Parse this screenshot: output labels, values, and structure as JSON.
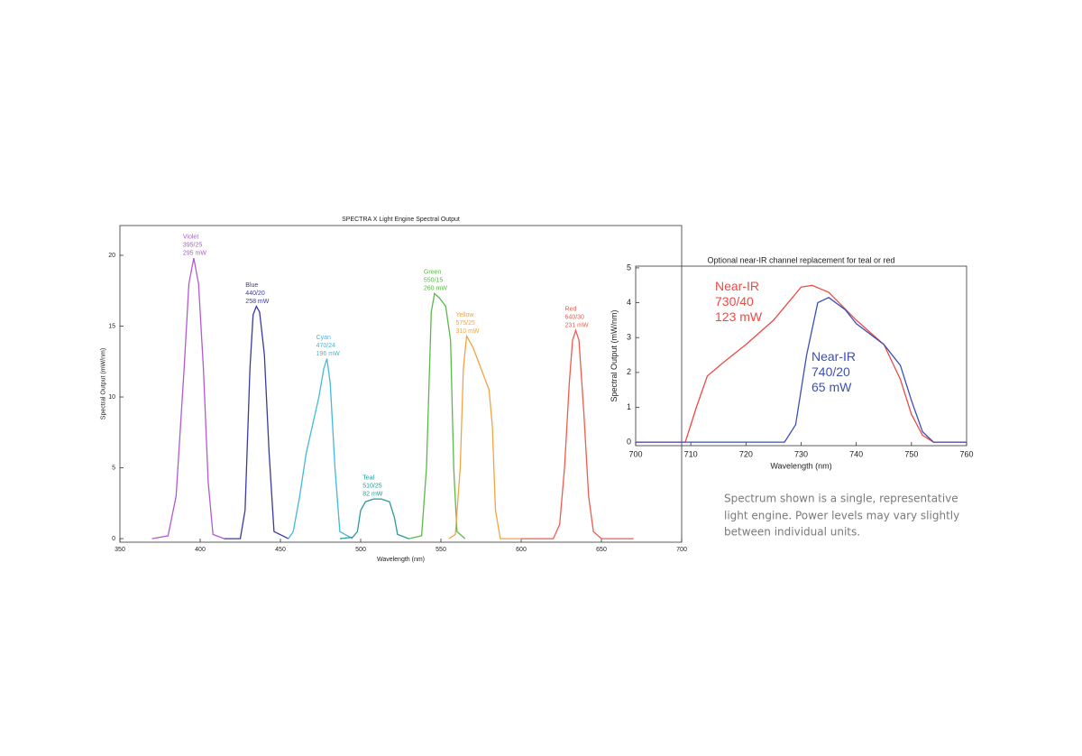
{
  "chart_data": [
    {
      "type": "line",
      "title": "SPECTRA X Light Engine Spectral Output",
      "xlabel": "Wavelength (nm)",
      "ylabel": "Spectral Output (mW/nm)",
      "xlim": [
        350,
        700
      ],
      "xticks": [
        350,
        400,
        450,
        500,
        550,
        600,
        650,
        700
      ],
      "ylim": [
        -0.25,
        22.1
      ],
      "yticks": [
        0,
        5,
        10,
        15,
        20
      ],
      "grid": false,
      "series": [
        {
          "name": "Violet",
          "filter": "395/25",
          "power": "295 mW",
          "color": "#b25ad2",
          "x": [
            370,
            380,
            385,
            390,
            393,
            396,
            399,
            402,
            405,
            408,
            415
          ],
          "values": [
            0,
            0.2,
            3,
            12,
            18,
            19.8,
            18,
            12,
            4,
            0.3,
            0
          ]
        },
        {
          "name": "Blue",
          "filter": "440/20",
          "power": "258 mW",
          "color": "#3a3a9e",
          "x": [
            415,
            425,
            428,
            431,
            433,
            435,
            437,
            440,
            443,
            446,
            455
          ],
          "values": [
            0,
            0,
            2,
            12,
            15.8,
            16.4,
            16,
            13,
            6,
            0.5,
            0
          ]
        },
        {
          "name": "Cyan",
          "filter": "470/24",
          "power": "196 mW",
          "color": "#45b9d9",
          "x": [
            455,
            458,
            462,
            466,
            470,
            474,
            477,
            479,
            481,
            484,
            487,
            495
          ],
          "values": [
            0,
            0.5,
            3,
            6,
            8,
            10,
            12,
            12.7,
            11,
            5,
            0.5,
            0
          ]
        },
        {
          "name": "Teal",
          "filter": "510/25",
          "power": "82 mW",
          "color": "#2a9a9c",
          "x": [
            487,
            495,
            498,
            500,
            503,
            508,
            513,
            518,
            521,
            523,
            530
          ],
          "values": [
            0,
            0.1,
            0.5,
            2,
            2.6,
            2.8,
            2.8,
            2.6,
            1.5,
            0.3,
            0
          ]
        },
        {
          "name": "Green",
          "filter": "550/15",
          "power": "260 mW",
          "color": "#5cb84c",
          "x": [
            530,
            538,
            541,
            544,
            546,
            549,
            553,
            556,
            558,
            560,
            565
          ],
          "values": [
            0,
            0.2,
            5,
            16,
            17.3,
            17,
            16.4,
            14,
            5,
            0.5,
            0
          ]
        },
        {
          "name": "Yellow",
          "filter": "575/25",
          "power": "310 mW",
          "color": "#f2a443",
          "x": [
            555,
            559,
            562,
            564,
            566,
            570,
            575,
            580,
            582,
            584,
            587,
            600
          ],
          "values": [
            0,
            0.3,
            5,
            12,
            14.3,
            13.5,
            12,
            10.5,
            8,
            2,
            0,
            0
          ]
        },
        {
          "name": "Red",
          "filter": "640/30",
          "power": "231 mW",
          "color": "#ee5c4e",
          "x": [
            600,
            620,
            624,
            627,
            630,
            632,
            634,
            636,
            639,
            642,
            645,
            650,
            670
          ],
          "values": [
            0,
            0,
            1,
            5,
            11,
            14,
            14.7,
            14,
            9,
            3,
            0.5,
            0,
            0
          ]
        }
      ]
    },
    {
      "type": "line",
      "title": "Optional near-IR channel replacement for teal or red",
      "xlabel": "Wavelength (nm)",
      "ylabel": "Spectral Output (mW/nm)",
      "xlim": [
        700,
        760
      ],
      "xticks": [
        700,
        710,
        720,
        730,
        740,
        750,
        760
      ],
      "ylim": [
        -0.1,
        5.05
      ],
      "yticks": [
        0,
        1,
        2,
        3,
        4,
        5
      ],
      "grid": false,
      "series": [
        {
          "name": "Near-IR",
          "filter": "730/40",
          "power": "123 mW",
          "color": "#ee4a44",
          "x": [
            700,
            709,
            711,
            713,
            716,
            720,
            725,
            730,
            732,
            735,
            740,
            745,
            748,
            750,
            752,
            754,
            760
          ],
          "values": [
            0,
            0,
            1,
            1.9,
            2.3,
            2.8,
            3.5,
            4.45,
            4.5,
            4.3,
            3.5,
            2.8,
            1.8,
            0.8,
            0.2,
            0,
            0
          ]
        },
        {
          "name": "Near-IR",
          "filter": "740/20",
          "power": "65 mW",
          "color": "#3c4fb8",
          "x": [
            700,
            727,
            729,
            731,
            733,
            735,
            738,
            740,
            745,
            748,
            750,
            752,
            754,
            760
          ],
          "values": [
            0,
            0,
            0.5,
            2.5,
            4,
            4.15,
            3.8,
            3.4,
            2.8,
            2.2,
            1.2,
            0.3,
            0,
            0
          ]
        }
      ]
    }
  ],
  "caption": [
    "Spectrum shown is a single, representative",
    "light engine. Power levels may vary slightly",
    "between individual units."
  ]
}
